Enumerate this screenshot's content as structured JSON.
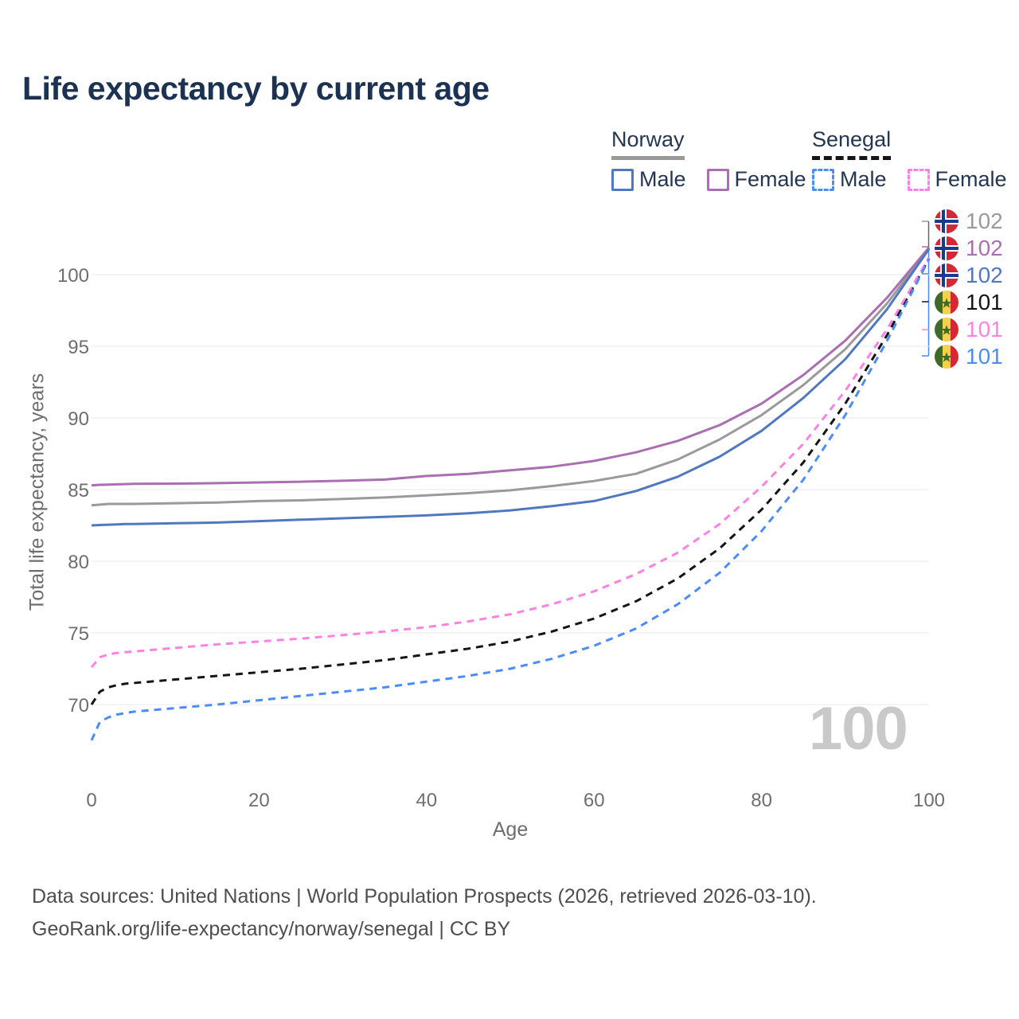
{
  "title": "Life expectancy by current age",
  "legend": {
    "groups": [
      {
        "country": "Norway",
        "male_label": "Male",
        "female_label": "Female"
      },
      {
        "country": "Senegal",
        "male_label": "Male",
        "female_label": "Female"
      }
    ]
  },
  "callouts": [
    {
      "flag": "norway",
      "value": "102",
      "color": "#9a9a9a"
    },
    {
      "flag": "norway",
      "value": "102",
      "color": "#a96fb1"
    },
    {
      "flag": "norway",
      "value": "102",
      "color": "#4f78c0"
    },
    {
      "flag": "senegal",
      "value": "101",
      "color": "#151515"
    },
    {
      "flag": "senegal",
      "value": "101",
      "color": "#ff82e3"
    },
    {
      "flag": "senegal",
      "value": "101",
      "color": "#4b8cfa"
    }
  ],
  "watermark": "100",
  "axes": {
    "x_label": "Age",
    "y_label": "Total life expectancy, years"
  },
  "footer": {
    "line1": "Data sources: United Nations | World Population Prospects (2026, retrieved 2026-03-10).",
    "line2": "GeoRank.org/life-expectancy/norway/senegal | CC BY"
  },
  "chart_data": {
    "type": "line",
    "title": "Life expectancy by current age",
    "xlabel": "Age",
    "ylabel": "Total life expectancy, years",
    "xlim": [
      0,
      100
    ],
    "ylim": [
      66,
      103
    ],
    "xticks": [
      0,
      20,
      40,
      60,
      80,
      100
    ],
    "yticks": [
      70,
      75,
      80,
      85,
      90,
      95,
      100
    ],
    "grid": "horizontal",
    "legend_position": "top-right",
    "x": [
      0,
      1,
      2,
      3,
      4,
      5,
      10,
      15,
      20,
      25,
      30,
      35,
      40,
      45,
      50,
      55,
      60,
      65,
      70,
      75,
      80,
      85,
      90,
      95,
      100
    ],
    "series": [
      {
        "name": "Norway All",
        "country": "Norway",
        "sex": "all",
        "color": "#9a9a9a",
        "dash": false,
        "values": [
          83.9,
          83.95,
          84.0,
          84.0,
          84.0,
          84.0,
          84.05,
          84.1,
          84.2,
          84.25,
          84.35,
          84.45,
          84.6,
          84.75,
          84.95,
          85.25,
          85.6,
          86.1,
          87.1,
          88.5,
          90.2,
          92.3,
          94.8,
          98.0,
          101.85
        ]
      },
      {
        "name": "Norway Female",
        "country": "Norway",
        "sex": "female",
        "color": "#a96fb1",
        "dash": false,
        "values": [
          85.3,
          85.33,
          85.35,
          85.37,
          85.38,
          85.4,
          85.42,
          85.45,
          85.5,
          85.55,
          85.62,
          85.7,
          85.95,
          86.1,
          86.35,
          86.6,
          87.0,
          87.6,
          88.4,
          89.5,
          91.0,
          93.0,
          95.4,
          98.4,
          101.9
        ]
      },
      {
        "name": "Norway Male",
        "country": "Norway",
        "sex": "male",
        "color": "#4f78c0",
        "dash": false,
        "values": [
          82.5,
          82.53,
          82.55,
          82.57,
          82.6,
          82.6,
          82.65,
          82.7,
          82.8,
          82.9,
          83.0,
          83.1,
          83.2,
          83.35,
          83.55,
          83.85,
          84.2,
          84.9,
          85.9,
          87.3,
          89.1,
          91.4,
          94.1,
          97.6,
          101.8
        ]
      },
      {
        "name": "Senegal All",
        "country": "Senegal",
        "sex": "all",
        "color": "#151515",
        "dash": true,
        "values": [
          70.0,
          70.9,
          71.2,
          71.35,
          71.45,
          71.5,
          71.75,
          72.0,
          72.25,
          72.5,
          72.8,
          73.1,
          73.5,
          73.9,
          74.4,
          75.1,
          76.0,
          77.2,
          78.8,
          80.9,
          83.6,
          86.9,
          91.0,
          95.8,
          101.15
        ]
      },
      {
        "name": "Senegal Female",
        "country": "Senegal",
        "sex": "female",
        "color": "#ff82e3",
        "dash": true,
        "values": [
          72.6,
          73.3,
          73.5,
          73.6,
          73.65,
          73.7,
          73.95,
          74.2,
          74.4,
          74.6,
          74.85,
          75.1,
          75.4,
          75.8,
          76.3,
          77.0,
          77.9,
          79.1,
          80.6,
          82.6,
          85.2,
          88.2,
          91.9,
          96.2,
          101.2
        ]
      },
      {
        "name": "Senegal Male",
        "country": "Senegal",
        "sex": "male",
        "color": "#4b8cfa",
        "dash": true,
        "values": [
          67.5,
          68.8,
          69.1,
          69.3,
          69.4,
          69.5,
          69.75,
          70.0,
          70.3,
          70.6,
          70.9,
          71.2,
          71.6,
          72.0,
          72.5,
          73.2,
          74.1,
          75.3,
          77.0,
          79.2,
          82.1,
          85.7,
          90.2,
          95.4,
          101.1
        ]
      }
    ]
  }
}
